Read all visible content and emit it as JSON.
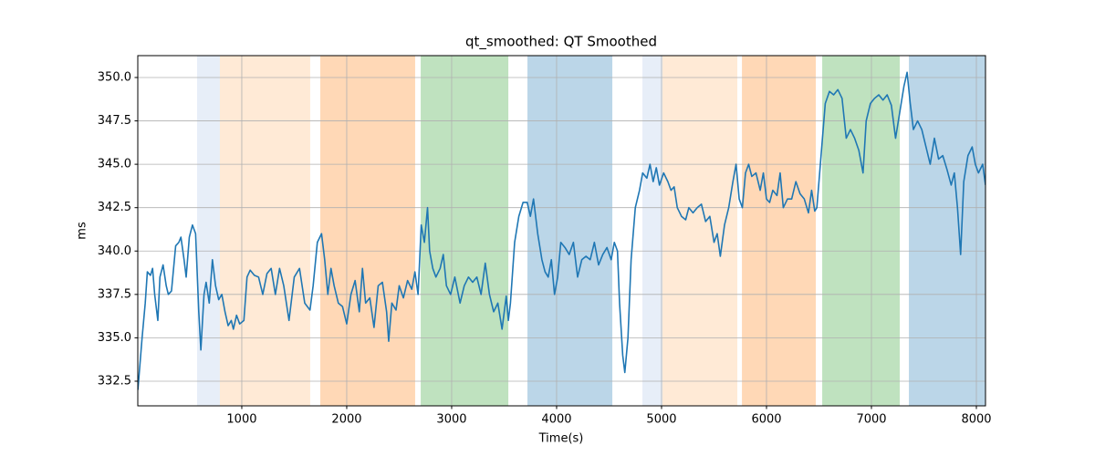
{
  "chart_data": {
    "type": "line",
    "title": "qt_smoothed: QT Smoothed",
    "x_label": "Time(s)",
    "y_label": "ms",
    "color": "#1f77b4",
    "grid": true,
    "xlim": [
      9,
      8087
    ],
    "ylim": [
      331.08,
      351.26
    ],
    "xticks": [
      1000,
      2000,
      3000,
      4000,
      5000,
      6000,
      7000,
      8000
    ],
    "yticks": [
      332.5,
      {
        "value": 335,
        "label": "335.0"
      },
      337.5,
      {
        "value": 340,
        "label": "340.0"
      },
      342.5,
      {
        "value": 345,
        "label": "345.0"
      },
      347.5,
      {
        "value": 350,
        "label": "350.0"
      }
    ],
    "span_alpha": 0.3,
    "spans": [
      {
        "start": 574,
        "end": 791,
        "color": "#aec7e8"
      },
      {
        "start": 791,
        "end": 1652,
        "color": "#ffbb78"
      },
      {
        "start": 1748,
        "end": 2652,
        "color": "#ff7f0e"
      },
      {
        "start": 2705,
        "end": 3540,
        "color": "#2ca02c"
      },
      {
        "start": 3722,
        "end": 4531,
        "color": "#1f77b4"
      },
      {
        "start": 4818,
        "end": 5009,
        "color": "#aec7e8"
      },
      {
        "start": 5009,
        "end": 5722,
        "color": "#ffbb78"
      },
      {
        "start": 5766,
        "end": 6470,
        "color": "#ff7f0e"
      },
      {
        "start": 6531,
        "end": 7270,
        "color": "#2ca02c"
      },
      {
        "start": 7357,
        "end": 8087,
        "color": "#1f77b4"
      }
    ],
    "x": [
      10,
      50,
      80,
      100,
      130,
      150,
      170,
      200,
      220,
      250,
      280,
      300,
      330,
      370,
      400,
      420,
      450,
      470,
      500,
      530,
      560,
      590,
      610,
      640,
      660,
      690,
      720,
      750,
      780,
      810,
      840,
      870,
      900,
      920,
      950,
      980,
      1020,
      1050,
      1080,
      1120,
      1160,
      1200,
      1240,
      1280,
      1320,
      1360,
      1400,
      1450,
      1500,
      1550,
      1600,
      1650,
      1680,
      1720,
      1760,
      1790,
      1820,
      1850,
      1880,
      1920,
      1960,
      2000,
      2040,
      2080,
      2120,
      2150,
      2180,
      2220,
      2260,
      2300,
      2340,
      2380,
      2400,
      2430,
      2470,
      2500,
      2540,
      2580,
      2620,
      2650,
      2680,
      2710,
      2740,
      2770,
      2790,
      2820,
      2850,
      2890,
      2920,
      2950,
      2990,
      3030,
      3080,
      3120,
      3160,
      3200,
      3240,
      3280,
      3320,
      3360,
      3400,
      3440,
      3480,
      3520,
      3540,
      3560,
      3600,
      3640,
      3680,
      3720,
      3750,
      3780,
      3820,
      3860,
      3890,
      3920,
      3950,
      3980,
      4010,
      4040,
      4080,
      4120,
      4160,
      4200,
      4240,
      4280,
      4320,
      4360,
      4400,
      4440,
      4480,
      4520,
      4550,
      4580,
      4600,
      4630,
      4650,
      4680,
      4710,
      4750,
      4790,
      4820,
      4860,
      4890,
      4920,
      4950,
      4980,
      5020,
      5060,
      5090,
      5120,
      5150,
      5190,
      5230,
      5260,
      5300,
      5340,
      5380,
      5420,
      5460,
      5500,
      5530,
      5560,
      5600,
      5640,
      5680,
      5710,
      5740,
      5770,
      5800,
      5830,
      5860,
      5900,
      5940,
      5970,
      6000,
      6030,
      6060,
      6100,
      6130,
      6160,
      6200,
      6240,
      6280,
      6320,
      6360,
      6400,
      6430,
      6460,
      6480,
      6520,
      6560,
      6600,
      6640,
      6680,
      6720,
      6760,
      6800,
      6840,
      6880,
      6920,
      6950,
      6990,
      7030,
      7070,
      7110,
      7150,
      7190,
      7230,
      7270,
      7310,
      7340,
      7370,
      7400,
      7440,
      7480,
      7520,
      7560,
      7600,
      7640,
      7680,
      7720,
      7760,
      7790,
      7820,
      7850,
      7880,
      7920,
      7960,
      7990,
      8020,
      8060,
      8087
    ],
    "values": [
      332.0,
      335,
      337,
      338.8,
      338.6,
      339,
      337.5,
      336,
      338.5,
      339.2,
      338,
      337.5,
      337.7,
      340.3,
      340.5,
      340.8,
      339.5,
      338.5,
      340.8,
      341.5,
      341,
      336.5,
      334.3,
      337.5,
      338.2,
      337,
      339.5,
      338,
      337.2,
      337.5,
      336.5,
      335.7,
      336,
      335.5,
      336.3,
      335.8,
      336,
      338.5,
      338.9,
      338.6,
      338.5,
      337.5,
      338.7,
      339,
      337.5,
      339,
      338,
      336,
      338.5,
      339,
      337,
      336.6,
      338,
      340.5,
      341,
      339.5,
      337.5,
      339,
      338,
      337,
      336.8,
      335.8,
      337.5,
      338.3,
      336.5,
      339,
      337,
      337.3,
      335.6,
      338,
      338.2,
      336.5,
      334.8,
      337,
      336.6,
      338,
      337.3,
      338.3,
      337.8,
      338.8,
      337.5,
      341.5,
      340.5,
      342.5,
      340,
      339,
      338.5,
      339,
      339.8,
      338,
      337.5,
      338.5,
      337,
      338,
      338.5,
      338.2,
      338.5,
      337.5,
      339.3,
      337.5,
      336.5,
      337,
      335.5,
      337.4,
      336,
      337,
      340.5,
      342,
      342.8,
      342.8,
      342,
      343,
      341,
      339.5,
      338.8,
      338.5,
      339.5,
      337.5,
      338.5,
      340.5,
      340.2,
      339.8,
      340.5,
      338.5,
      339.5,
      339.7,
      339.5,
      340.5,
      339.2,
      339.8,
      340.2,
      339.5,
      340.5,
      340,
      337,
      334,
      333,
      335,
      339.5,
      342.5,
      343.5,
      344.5,
      344.2,
      345,
      344,
      344.8,
      343.8,
      344.5,
      344,
      343.5,
      343.7,
      342.5,
      342,
      341.8,
      342.5,
      342.2,
      342.5,
      342.7,
      341.7,
      342,
      340.5,
      341,
      339.7,
      341.5,
      342.5,
      344,
      345,
      343,
      342.5,
      344.5,
      345,
      344.3,
      344.5,
      343.5,
      344.5,
      343,
      342.8,
      343.5,
      343.2,
      344.5,
      342.5,
      343,
      343,
      344,
      343.3,
      343,
      342.2,
      343.5,
      342.3,
      342.5,
      345.5,
      348.5,
      349.2,
      349,
      349.3,
      348.8,
      346.5,
      347,
      346.5,
      345.8,
      344.5,
      347.5,
      348.5,
      348.8,
      349,
      348.7,
      349,
      348.4,
      346.5,
      348,
      349.5,
      350.3,
      348.5,
      347,
      347.5,
      347,
      346,
      345,
      346.5,
      345.3,
      345.5,
      344.7,
      343.8,
      344.5,
      342.5,
      339.8,
      344,
      345.5,
      346,
      345,
      344.5,
      345,
      343.8
    ]
  }
}
